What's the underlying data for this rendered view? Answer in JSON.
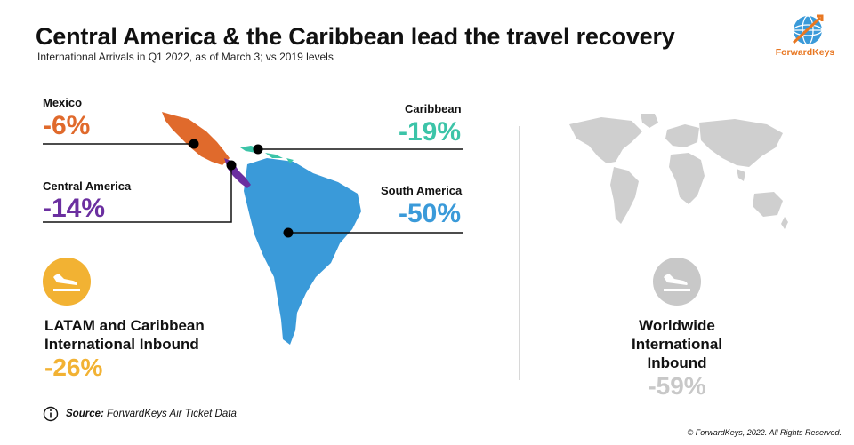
{
  "header": {
    "title": "Central America & the Caribbean lead the travel recovery",
    "subtitle": "International Arrivals in Q1 2022, as of March 3; vs 2019 levels"
  },
  "brand": {
    "name": "ForwardKeys",
    "logo_icon": "globe-logo-icon",
    "color": "#e87722"
  },
  "regions": {
    "mexico": {
      "label": "Mexico",
      "value": "-6%",
      "color": "#e06a2c"
    },
    "central_america": {
      "label": "Central America",
      "value": "-14%",
      "color": "#6b2fa0"
    },
    "caribbean": {
      "label": "Caribbean",
      "value": "-19%",
      "color": "#3cc4a8"
    },
    "south_america": {
      "label": "South America",
      "value": "-50%",
      "color": "#3a9ad9"
    }
  },
  "latam_inbound": {
    "line1": "LATAM and Caribbean",
    "line2": "International Inbound",
    "value": "-26%",
    "color": "#f2b233",
    "icon": "plane-landing-icon"
  },
  "worldwide_inbound": {
    "line1": "Worldwide",
    "line2": "International",
    "line3": "Inbound",
    "value": "-59%",
    "color": "#c8c8c8",
    "icon": "plane-landing-icon"
  },
  "footer": {
    "source_label": "Source:",
    "source_text": "ForwardKeys Air Ticket Data",
    "copyright": "© ForwardKeys, 2022. All Rights Reserved.",
    "info_icon": "info-icon"
  }
}
